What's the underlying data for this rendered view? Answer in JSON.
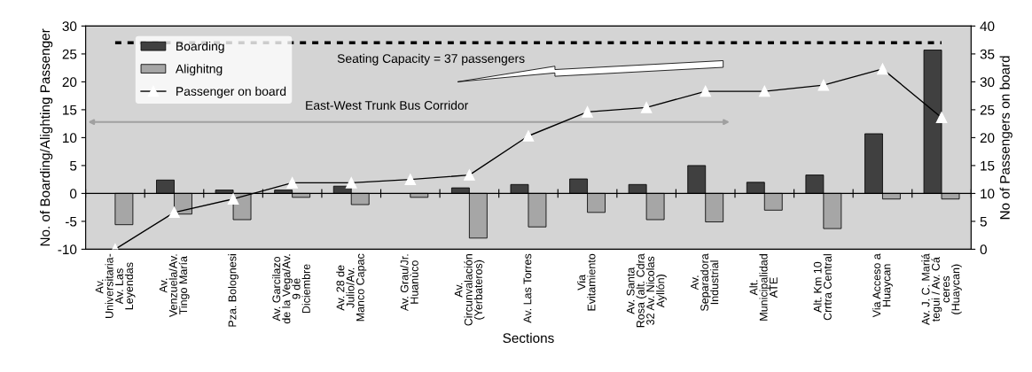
{
  "chart_data": {
    "type": "bar",
    "categories": [
      "Av.\nUniversitaria-\nAv. Las\nLeyendas",
      "Av.\nVenzuela/Av.\nTingo María",
      "Pza. Bolognesi",
      "Av. Garcilazo\nde la Vega/Av.\n9 de\nDiciembre",
      "Av. 28 de\nJulio/Av.\nManco Capac",
      "Av. Grau/Jr.\nHuanùco",
      "Av.\nCircunvalación\n(Yerbateros)",
      "Av. Las Torres",
      "Via\nEvitamiento",
      "Av. Santa\nRosa (alt. Cdra\n32 Av. Nicolas\nAyllón)",
      "Av.\nSeparadora\nIndustrial",
      "Alt.\nMunicipalidad\nATE",
      "Alt. Km 10\nCrrtra Central",
      "Via Acceso a\nHuaycan",
      "Av. J. C. Mariá\ntegui / Av. Cá\nceres\n(Huaycan)"
    ],
    "series": [
      {
        "name": "Boarding",
        "color": "#404040",
        "values": [
          null,
          2.4,
          0.6,
          0.6,
          1.3,
          null,
          1.0,
          1.6,
          2.6,
          1.6,
          5.0,
          2.0,
          3.3,
          10.7,
          25.7
        ]
      },
      {
        "name": "Alighitng",
        "color": "#a6a6a6",
        "values": [
          -5.6,
          -3.7,
          -4.7,
          -0.7,
          -2.0,
          -0.7,
          -8.0,
          -6.0,
          -3.4,
          -4.7,
          -5.1,
          -3.0,
          -6.3,
          -1.0,
          -1.0
        ]
      },
      {
        "name": "Passenger on board",
        "type": "line",
        "axis": "y2",
        "color": "#000000",
        "marker": "triangle",
        "line_style": "solid",
        "values": [
          0,
          6.6,
          9.0,
          11.9,
          11.9,
          12.5,
          13.3,
          20.3,
          24.6,
          25.4,
          28.3,
          28.3,
          29.4,
          32.3,
          23.6
        ]
      }
    ],
    "xlabel": "Sections",
    "ylabel": "No. of Boarding/Alighting Passenger",
    "y2label": "No of Passengers on board",
    "ylim": [
      -10,
      30
    ],
    "yticks": [
      -10,
      -5,
      0,
      5,
      10,
      15,
      20,
      25,
      30
    ],
    "y2lim": [
      0,
      40
    ],
    "y2ticks": [
      0,
      5,
      10,
      15,
      20,
      25,
      30,
      35,
      40
    ],
    "ref_lines": [
      {
        "axis": "y2",
        "value": 37,
        "label": "Seating Capacity = 37 passengers",
        "color": "#000000",
        "line_style": "dashed"
      }
    ],
    "annotations": [
      "East-West Trunk Bus Corridor"
    ],
    "legend": "top left"
  }
}
